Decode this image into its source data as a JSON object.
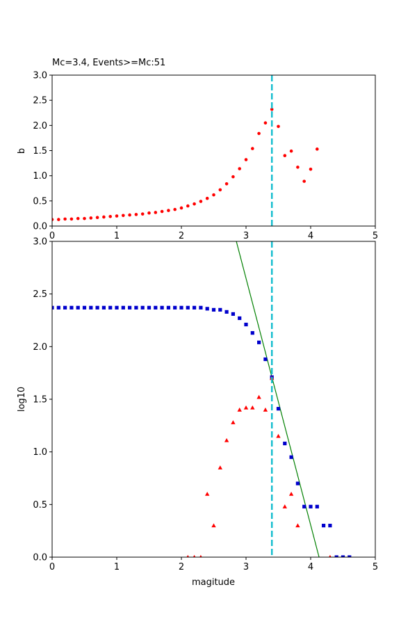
{
  "chart_data": [
    {
      "type": "scatter",
      "title": "Mc=3.4, Events>=Mc:51",
      "xlabel": "",
      "ylabel": "b",
      "xlim": [
        0,
        5
      ],
      "ylim": [
        0,
        3
      ],
      "xticks": [
        "0",
        "1",
        "2",
        "3",
        "4",
        "5"
      ],
      "yticks": [
        "0.0",
        "0.5",
        "1.0",
        "1.5",
        "2.0",
        "2.5",
        "3.0"
      ],
      "vline": {
        "x": 3.4,
        "color": "#17becf",
        "style": "dashed"
      },
      "series": [
        {
          "marker": "circle",
          "color": "#ff0000",
          "points": [
            [
              0.0,
              0.13
            ],
            [
              0.1,
              0.13
            ],
            [
              0.2,
              0.14
            ],
            [
              0.3,
              0.14
            ],
            [
              0.4,
              0.15
            ],
            [
              0.5,
              0.15
            ],
            [
              0.6,
              0.16
            ],
            [
              0.7,
              0.17
            ],
            [
              0.8,
              0.18
            ],
            [
              0.9,
              0.19
            ],
            [
              1.0,
              0.2
            ],
            [
              1.1,
              0.21
            ],
            [
              1.2,
              0.22
            ],
            [
              1.3,
              0.23
            ],
            [
              1.4,
              0.24
            ],
            [
              1.5,
              0.26
            ],
            [
              1.6,
              0.27
            ],
            [
              1.7,
              0.29
            ],
            [
              1.8,
              0.31
            ],
            [
              1.9,
              0.33
            ],
            [
              2.0,
              0.36
            ],
            [
              2.1,
              0.4
            ],
            [
              2.2,
              0.44
            ],
            [
              2.3,
              0.49
            ],
            [
              2.4,
              0.55
            ],
            [
              2.5,
              0.62
            ],
            [
              2.6,
              0.72
            ],
            [
              2.7,
              0.84
            ],
            [
              2.8,
              0.98
            ],
            [
              2.9,
              1.14
            ],
            [
              3.0,
              1.32
            ],
            [
              3.1,
              1.54
            ],
            [
              3.2,
              1.84
            ],
            [
              3.3,
              2.05
            ],
            [
              3.4,
              2.32
            ],
            [
              3.5,
              1.98
            ],
            [
              3.6,
              1.4
            ],
            [
              3.7,
              1.49
            ],
            [
              3.8,
              1.17
            ],
            [
              3.9,
              0.89
            ],
            [
              4.0,
              1.13
            ],
            [
              4.1,
              1.53
            ]
          ]
        }
      ]
    },
    {
      "type": "scatter",
      "title": "",
      "xlabel": "magitude",
      "ylabel": "log10",
      "xlim": [
        0,
        5
      ],
      "ylim": [
        0,
        3
      ],
      "xticks": [
        "0",
        "1",
        "2",
        "3",
        "4",
        "5"
      ],
      "yticks": [
        "0.0",
        "0.5",
        "1.0",
        "1.5",
        "2.0",
        "2.5",
        "3.0"
      ],
      "vline": {
        "x": 3.4,
        "color": "#17becf",
        "style": "dashed"
      },
      "fit_line": {
        "points": [
          [
            2.85,
            3.0
          ],
          [
            4.13,
            0.0
          ]
        ],
        "color": "#008000"
      },
      "series": [
        {
          "marker": "square",
          "color": "#0000cc",
          "points": [
            [
              0.0,
              2.37
            ],
            [
              0.1,
              2.37
            ],
            [
              0.2,
              2.37
            ],
            [
              0.3,
              2.37
            ],
            [
              0.4,
              2.37
            ],
            [
              0.5,
              2.37
            ],
            [
              0.6,
              2.37
            ],
            [
              0.7,
              2.37
            ],
            [
              0.8,
              2.37
            ],
            [
              0.9,
              2.37
            ],
            [
              1.0,
              2.37
            ],
            [
              1.1,
              2.37
            ],
            [
              1.2,
              2.37
            ],
            [
              1.3,
              2.37
            ],
            [
              1.4,
              2.37
            ],
            [
              1.5,
              2.37
            ],
            [
              1.6,
              2.37
            ],
            [
              1.7,
              2.37
            ],
            [
              1.8,
              2.37
            ],
            [
              1.9,
              2.37
            ],
            [
              2.0,
              2.37
            ],
            [
              2.1,
              2.37
            ],
            [
              2.2,
              2.37
            ],
            [
              2.3,
              2.37
            ],
            [
              2.4,
              2.36
            ],
            [
              2.5,
              2.35
            ],
            [
              2.6,
              2.35
            ],
            [
              2.7,
              2.33
            ],
            [
              2.8,
              2.31
            ],
            [
              2.9,
              2.27
            ],
            [
              3.0,
              2.21
            ],
            [
              3.1,
              2.13
            ],
            [
              3.2,
              2.04
            ],
            [
              3.3,
              1.88
            ],
            [
              3.4,
              1.71
            ],
            [
              3.5,
              1.41
            ],
            [
              3.6,
              1.08
            ],
            [
              3.7,
              0.95
            ],
            [
              3.8,
              0.7
            ],
            [
              3.9,
              0.48
            ],
            [
              4.0,
              0.48
            ],
            [
              4.1,
              0.48
            ],
            [
              4.2,
              0.3
            ],
            [
              4.3,
              0.3
            ],
            [
              4.4,
              0.0
            ],
            [
              4.5,
              0.0
            ],
            [
              4.6,
              0.0
            ]
          ]
        },
        {
          "marker": "triangle",
          "color": "#ff0000",
          "points": [
            [
              2.1,
              0.0
            ],
            [
              2.2,
              0.0
            ],
            [
              2.3,
              0.0
            ],
            [
              2.4,
              0.6
            ],
            [
              2.5,
              0.3
            ],
            [
              2.6,
              0.85
            ],
            [
              2.7,
              1.11
            ],
            [
              2.8,
              1.28
            ],
            [
              2.9,
              1.4
            ],
            [
              3.0,
              1.42
            ],
            [
              3.1,
              1.42
            ],
            [
              3.2,
              1.52
            ],
            [
              3.3,
              1.4
            ],
            [
              3.4,
              1.7
            ],
            [
              3.5,
              1.15
            ],
            [
              3.6,
              0.48
            ],
            [
              3.7,
              0.6
            ],
            [
              3.8,
              0.3
            ],
            [
              4.3,
              0.0
            ]
          ]
        }
      ]
    }
  ]
}
